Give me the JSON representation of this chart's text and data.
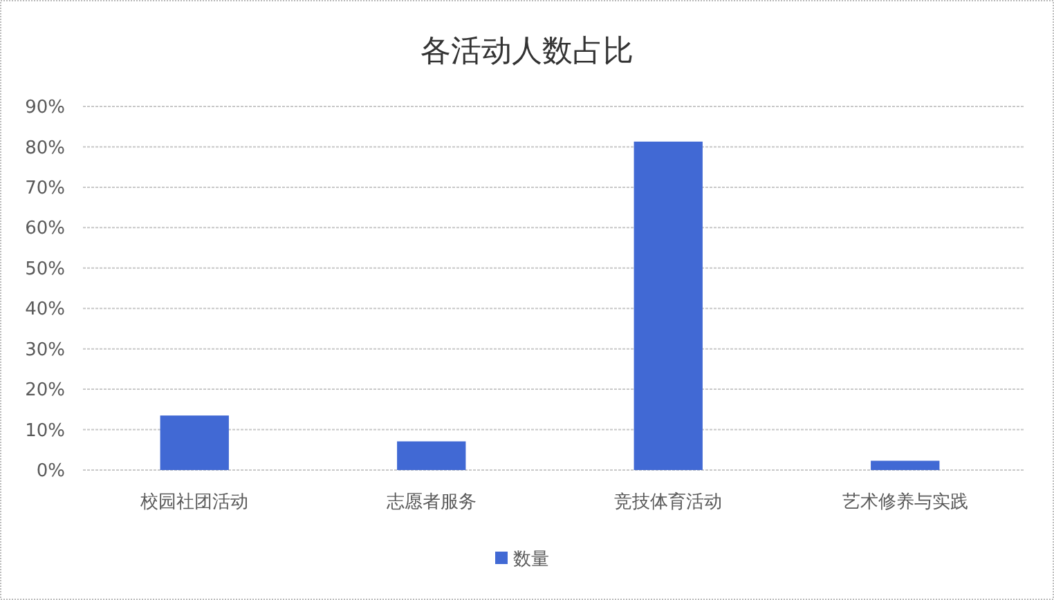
{
  "chart_data": {
    "type": "bar",
    "title": "各活动人数占比",
    "categories": [
      "校园社团活动",
      "志愿者服务",
      "竞技体育活动",
      "艺术修养与实践"
    ],
    "series": [
      {
        "name": "数量",
        "color": "#4169d4",
        "values": [
          13.5,
          7.1,
          81.3,
          2.3
        ]
      }
    ],
    "ylim": [
      0,
      90
    ],
    "yticks": [
      {
        "value": 0,
        "label": "0%"
      },
      {
        "value": 10,
        "label": "10%"
      },
      {
        "value": 20,
        "label": "20%"
      },
      {
        "value": 30,
        "label": "30%"
      },
      {
        "value": 40,
        "label": "40%"
      },
      {
        "value": 50,
        "label": "50%"
      },
      {
        "value": 60,
        "label": "60%"
      },
      {
        "value": 70,
        "label": "70%"
      },
      {
        "value": 80,
        "label": "80%"
      },
      {
        "value": 90,
        "label": "90%"
      }
    ],
    "grid": "y",
    "legend": "bottom"
  }
}
